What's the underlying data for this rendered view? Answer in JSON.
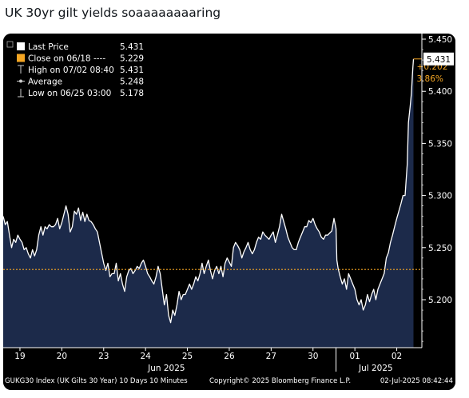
{
  "post": {
    "text": "UK 30yr gilt yields soaaaaaaaaring"
  },
  "chart_data": {
    "type": "area",
    "ticker_line": "GUKG30 Index (UK Gilts 30 Year) 10 Days 10 Minutes",
    "copyright": "Copyright© 2025 Bloomberg Finance L.P.",
    "timestamp": "02-Jul-2025 08:42:44",
    "legend": [
      {
        "label": "Last Price",
        "value": "5.431",
        "icon": "white-square"
      },
      {
        "label": "Close on 06/18 ----",
        "value": "5.229",
        "icon": "orange-square"
      },
      {
        "label": "High on 07/02 08:40",
        "value": "5.431",
        "icon": "high-marker"
      },
      {
        "label": "Average",
        "value": "5.248",
        "icon": "average-marker"
      },
      {
        "label": "Low on 06/25 03:00",
        "value": "5.178",
        "icon": "low-marker"
      }
    ],
    "last_price_label": "5.431",
    "change": {
      "abs": "+0.202",
      "pct": "3.86%"
    },
    "reference_line": 5.229,
    "ylim": [
      5.15,
      5.45
    ],
    "yticks": [
      "5.450",
      "5.400",
      "5.350",
      "5.300",
      "5.250",
      "5.200"
    ],
    "xlim": [
      0,
      10
    ],
    "x_labels": [
      {
        "label": "19",
        "x": 0.4
      },
      {
        "label": "20",
        "x": 1.4
      },
      {
        "label": "23",
        "x": 2.4
      },
      {
        "label": "24",
        "x": 3.4
      },
      {
        "label": "25",
        "x": 4.4
      },
      {
        "label": "26",
        "x": 5.4
      },
      {
        "label": "27",
        "x": 6.4
      },
      {
        "label": "30",
        "x": 7.4
      },
      {
        "label": "01",
        "x": 8.4
      },
      {
        "label": "02",
        "x": 9.4
      }
    ],
    "months": [
      {
        "label": "Jun 2025",
        "x": 3.9
      },
      {
        "label": "Jul 2025",
        "x": 8.9
      }
    ],
    "month_divider_x": 7.95,
    "colors": {
      "line": "#ffffff",
      "fill": "#1c2a4a",
      "ref": "#f5a623",
      "axis": "#ffffff",
      "change": "#f5a623"
    },
    "series": [
      {
        "values": [
          [
            0.0,
            5.28
          ],
          [
            0.05,
            5.272
          ],
          [
            0.1,
            5.275
          ],
          [
            0.15,
            5.262
          ],
          [
            0.2,
            5.25
          ],
          [
            0.25,
            5.258
          ],
          [
            0.3,
            5.255
          ],
          [
            0.35,
            5.262
          ],
          [
            0.4,
            5.258
          ],
          [
            0.45,
            5.255
          ],
          [
            0.5,
            5.248
          ],
          [
            0.55,
            5.25
          ],
          [
            0.6,
            5.244
          ],
          [
            0.65,
            5.24
          ],
          [
            0.7,
            5.248
          ],
          [
            0.75,
            5.242
          ],
          [
            0.8,
            5.248
          ],
          [
            0.85,
            5.262
          ],
          [
            0.9,
            5.27
          ],
          [
            0.95,
            5.262
          ],
          [
            1.0,
            5.27
          ],
          [
            1.05,
            5.268
          ],
          [
            1.1,
            5.272
          ],
          [
            1.15,
            5.27
          ],
          [
            1.2,
            5.27
          ],
          [
            1.25,
            5.272
          ],
          [
            1.3,
            5.278
          ],
          [
            1.35,
            5.268
          ],
          [
            1.4,
            5.274
          ],
          [
            1.45,
            5.282
          ],
          [
            1.5,
            5.29
          ],
          [
            1.55,
            5.282
          ],
          [
            1.6,
            5.265
          ],
          [
            1.65,
            5.27
          ],
          [
            1.7,
            5.285
          ],
          [
            1.75,
            5.282
          ],
          [
            1.8,
            5.288
          ],
          [
            1.85,
            5.276
          ],
          [
            1.9,
            5.284
          ],
          [
            1.95,
            5.275
          ],
          [
            2.0,
            5.282
          ],
          [
            2.05,
            5.276
          ],
          [
            2.1,
            5.275
          ],
          [
            2.15,
            5.272
          ],
          [
            2.2,
            5.268
          ],
          [
            2.25,
            5.265
          ],
          [
            2.3,
            5.255
          ],
          [
            2.35,
            5.245
          ],
          [
            2.4,
            5.235
          ],
          [
            2.45,
            5.228
          ],
          [
            2.5,
            5.235
          ],
          [
            2.55,
            5.222
          ],
          [
            2.6,
            5.225
          ],
          [
            2.65,
            5.225
          ],
          [
            2.7,
            5.235
          ],
          [
            2.75,
            5.218
          ],
          [
            2.8,
            5.225
          ],
          [
            2.85,
            5.215
          ],
          [
            2.9,
            5.208
          ],
          [
            2.95,
            5.222
          ],
          [
            3.0,
            5.228
          ],
          [
            3.05,
            5.23
          ],
          [
            3.1,
            5.225
          ],
          [
            3.15,
            5.228
          ],
          [
            3.2,
            5.232
          ],
          [
            3.25,
            5.23
          ],
          [
            3.3,
            5.235
          ],
          [
            3.35,
            5.238
          ],
          [
            3.4,
            5.232
          ],
          [
            3.45,
            5.225
          ],
          [
            3.5,
            5.222
          ],
          [
            3.55,
            5.218
          ],
          [
            3.6,
            5.215
          ],
          [
            3.65,
            5.222
          ],
          [
            3.7,
            5.232
          ],
          [
            3.75,
            5.225
          ],
          [
            3.8,
            5.21
          ],
          [
            3.85,
            5.195
          ],
          [
            3.9,
            5.205
          ],
          [
            3.95,
            5.185
          ],
          [
            4.0,
            5.178
          ],
          [
            4.05,
            5.19
          ],
          [
            4.1,
            5.185
          ],
          [
            4.15,
            5.195
          ],
          [
            4.2,
            5.208
          ],
          [
            4.25,
            5.2
          ],
          [
            4.3,
            5.205
          ],
          [
            4.35,
            5.205
          ],
          [
            4.4,
            5.21
          ],
          [
            4.45,
            5.215
          ],
          [
            4.5,
            5.21
          ],
          [
            4.55,
            5.215
          ],
          [
            4.6,
            5.222
          ],
          [
            4.65,
            5.218
          ],
          [
            4.7,
            5.225
          ],
          [
            4.75,
            5.235
          ],
          [
            4.8,
            5.225
          ],
          [
            4.85,
            5.232
          ],
          [
            4.9,
            5.238
          ],
          [
            4.95,
            5.228
          ],
          [
            5.0,
            5.22
          ],
          [
            5.05,
            5.228
          ],
          [
            5.1,
            5.232
          ],
          [
            5.15,
            5.225
          ],
          [
            5.2,
            5.232
          ],
          [
            5.25,
            5.222
          ],
          [
            5.3,
            5.235
          ],
          [
            5.35,
            5.24
          ],
          [
            5.4,
            5.236
          ],
          [
            5.45,
            5.232
          ],
          [
            5.5,
            5.25
          ],
          [
            5.55,
            5.255
          ],
          [
            5.6,
            5.252
          ],
          [
            5.65,
            5.248
          ],
          [
            5.7,
            5.24
          ],
          [
            5.75,
            5.246
          ],
          [
            5.8,
            5.25
          ],
          [
            5.85,
            5.255
          ],
          [
            5.9,
            5.248
          ],
          [
            5.95,
            5.244
          ],
          [
            6.0,
            5.248
          ],
          [
            6.05,
            5.255
          ],
          [
            6.1,
            5.26
          ],
          [
            6.15,
            5.258
          ],
          [
            6.2,
            5.265
          ],
          [
            6.25,
            5.262
          ],
          [
            6.3,
            5.26
          ],
          [
            6.35,
            5.258
          ],
          [
            6.4,
            5.262
          ],
          [
            6.45,
            5.265
          ],
          [
            6.5,
            5.255
          ],
          [
            6.55,
            5.262
          ],
          [
            6.6,
            5.27
          ],
          [
            6.65,
            5.282
          ],
          [
            6.7,
            5.275
          ],
          [
            6.75,
            5.268
          ],
          [
            6.8,
            5.26
          ],
          [
            6.85,
            5.255
          ],
          [
            6.9,
            5.25
          ],
          [
            6.95,
            5.248
          ],
          [
            7.0,
            5.248
          ],
          [
            7.05,
            5.255
          ],
          [
            7.1,
            5.26
          ],
          [
            7.15,
            5.265
          ],
          [
            7.2,
            5.27
          ],
          [
            7.25,
            5.27
          ],
          [
            7.3,
            5.276
          ],
          [
            7.35,
            5.274
          ],
          [
            7.4,
            5.278
          ],
          [
            7.45,
            5.272
          ],
          [
            7.5,
            5.268
          ],
          [
            7.55,
            5.265
          ],
          [
            7.6,
            5.26
          ],
          [
            7.65,
            5.258
          ],
          [
            7.7,
            5.262
          ],
          [
            7.75,
            5.262
          ],
          [
            7.8,
            5.264
          ],
          [
            7.85,
            5.266
          ],
          [
            7.9,
            5.278
          ],
          [
            7.95,
            5.268
          ],
          [
            7.97,
            5.238
          ],
          [
            8.0,
            5.23
          ],
          [
            8.05,
            5.222
          ],
          [
            8.1,
            5.215
          ],
          [
            8.15,
            5.22
          ],
          [
            8.2,
            5.21
          ],
          [
            8.25,
            5.225
          ],
          [
            8.3,
            5.22
          ],
          [
            8.35,
            5.215
          ],
          [
            8.4,
            5.21
          ],
          [
            8.45,
            5.2
          ],
          [
            8.5,
            5.195
          ],
          [
            8.55,
            5.2
          ],
          [
            8.6,
            5.19
          ],
          [
            8.65,
            5.195
          ],
          [
            8.7,
            5.205
          ],
          [
            8.75,
            5.198
          ],
          [
            8.8,
            5.205
          ],
          [
            8.85,
            5.21
          ],
          [
            8.9,
            5.2
          ],
          [
            8.95,
            5.21
          ],
          [
            9.0,
            5.215
          ],
          [
            9.05,
            5.22
          ],
          [
            9.1,
            5.225
          ],
          [
            9.15,
            5.24
          ],
          [
            9.2,
            5.245
          ],
          [
            9.25,
            5.255
          ],
          [
            9.3,
            5.262
          ],
          [
            9.35,
            5.27
          ],
          [
            9.4,
            5.278
          ],
          [
            9.45,
            5.285
          ],
          [
            9.5,
            5.292
          ],
          [
            9.55,
            5.3
          ],
          [
            9.6,
            5.3
          ],
          [
            9.65,
            5.33
          ],
          [
            9.68,
            5.37
          ],
          [
            9.7,
            5.378
          ],
          [
            9.72,
            5.385
          ],
          [
            9.75,
            5.398
          ],
          [
            9.78,
            5.42
          ],
          [
            9.8,
            5.431
          ]
        ]
      }
    ]
  }
}
